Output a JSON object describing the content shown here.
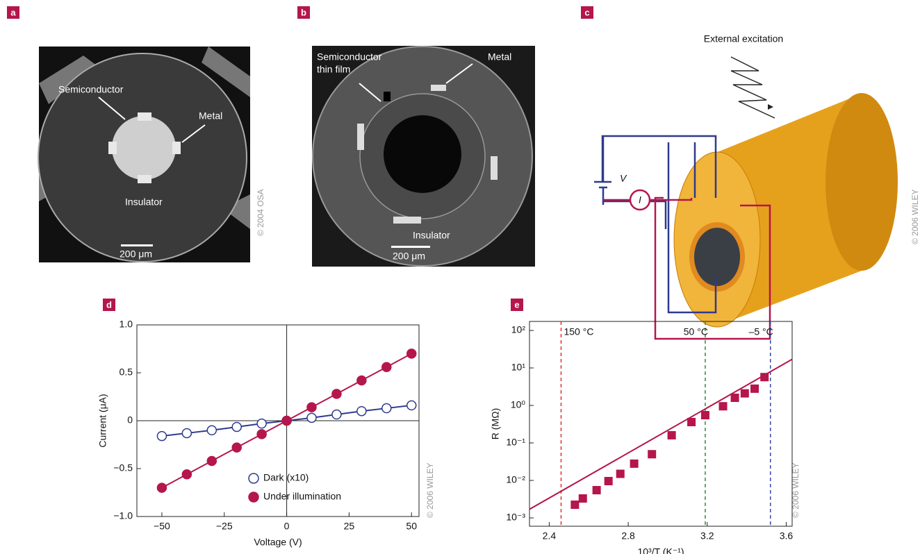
{
  "panels": {
    "a": {
      "letter": "a",
      "labels": [
        "Semiconductor",
        "Metal",
        "Insulator"
      ],
      "scale": "200 μm",
      "credit": "© 2004 OSA"
    },
    "b": {
      "letter": "b",
      "labels": [
        "Semiconductor",
        "thin film",
        "Metal",
        "Insulator"
      ],
      "scale": "200 μm"
    },
    "c": {
      "letter": "c",
      "excitation": "External excitation",
      "voltage": "V",
      "current": "I",
      "credit": "© 2006 WILEY"
    },
    "d": {
      "letter": "d",
      "credit": "© 2006 WILEY"
    },
    "e": {
      "letter": "e",
      "credit": "© 2006 WILEY"
    }
  },
  "chart_data": [
    {
      "type": "line",
      "x_label": "Voltage (V)",
      "y_label": "Current (μA)",
      "xlim": [
        -60,
        53
      ],
      "ylim": [
        -1,
        1
      ],
      "xticks": [
        {
          "value": -50,
          "label": "−50"
        },
        {
          "value": -25,
          "label": "−25"
        },
        0,
        25,
        50
      ],
      "yticks": [
        {
          "value": -1,
          "label": "−1.0"
        },
        {
          "value": -0.5,
          "label": "−0.5"
        },
        0,
        0.5,
        {
          "value": 1,
          "label": "1.0"
        }
      ],
      "zero_lines": true,
      "x": [
        -50,
        -40,
        -30,
        -20,
        -10,
        0,
        10,
        20,
        30,
        40,
        50
      ],
      "series": [
        {
          "name": "Dark (x10)",
          "color": "#2e3a8c",
          "marker": "open",
          "values": [
            -0.16,
            -0.13,
            -0.1,
            -0.065,
            -0.03,
            0,
            0.03,
            0.065,
            0.1,
            0.13,
            0.16
          ]
        },
        {
          "name": "Under illumination",
          "color": "#b5164b",
          "marker": "filled",
          "values": [
            -0.7,
            -0.56,
            -0.42,
            -0.28,
            -0.14,
            0,
            0.14,
            0.28,
            0.42,
            0.56,
            0.7
          ]
        }
      ]
    },
    {
      "type": "scatter",
      "x_label": "10³/T (K⁻¹)",
      "y_label": "R (MΩ)",
      "log_y": true,
      "xlim": [
        2.3,
        3.63
      ],
      "ylim": [
        0.0006,
        174
      ],
      "xticks": [
        2.4,
        2.8,
        3.2,
        3.6
      ],
      "yticks": [
        {
          "value": 100,
          "label": "10²"
        },
        {
          "value": 10,
          "label": "10¹"
        },
        {
          "value": 1,
          "label": "10⁰"
        },
        {
          "value": 0.1,
          "label": "10⁻¹"
        },
        {
          "value": 0.01,
          "label": "10⁻²"
        },
        {
          "value": 0.001,
          "label": "10⁻³"
        }
      ],
      "color": "#b5164b",
      "x": [
        2.53,
        2.57,
        2.64,
        2.7,
        2.76,
        2.83,
        2.92,
        3.02,
        3.12,
        3.19,
        3.28,
        3.34,
        3.39,
        3.44,
        3.49
      ],
      "values": [
        0.00225,
        0.0033,
        0.0055,
        0.0096,
        0.015,
        0.028,
        0.05,
        0.16,
        0.36,
        0.55,
        0.95,
        1.6,
        2.1,
        2.8,
        5.7
      ],
      "fit": {
        "x": [
          2.3,
          3.63
        ],
        "values": [
          0.0017,
          17
        ]
      },
      "vlines": [
        {
          "x": 2.46,
          "label": "150 °C",
          "color": "#e03030"
        },
        {
          "x": 3.19,
          "label": "50 °C",
          "color": "#2e8a3e"
        },
        {
          "x": 3.52,
          "label": "–5 °C",
          "color": "#3a48a8"
        }
      ]
    }
  ]
}
